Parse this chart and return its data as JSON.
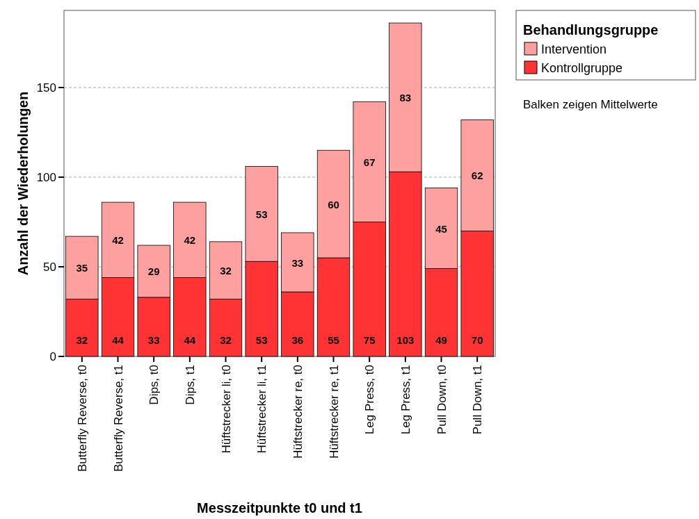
{
  "chart_data": {
    "type": "bar",
    "stacked": true,
    "xlabel": "Messzeitpunkte t0 und t1",
    "ylabel": "Anzahl der Wiederholungen",
    "legend_title": "Behandlungsgruppe",
    "annotations": [
      "Balken zeigen Mittelwerte"
    ],
    "categories": [
      "Butterfly Reverse, t0",
      "Butterfly Reverse, t1",
      "Dips, t0",
      "Dips, t1",
      "Hüftstrecker li, t0",
      "Hüftstrecker li, t1",
      "Hüftstrecker re, t0",
      "Hüftstrecker re, t1",
      "Leg Press, t0",
      "Leg Press, t1",
      "Pull Down, t0",
      "Pull Down, t1"
    ],
    "series": [
      {
        "name": "Kontrollgruppe",
        "color": "#ff3333",
        "values": [
          32,
          44,
          33,
          44,
          32,
          53,
          36,
          55,
          75,
          103,
          49,
          70
        ]
      },
      {
        "name": "Intervention",
        "color": "#ffa0a0",
        "values": [
          35,
          42,
          29,
          42,
          32,
          53,
          33,
          60,
          67,
          83,
          45,
          62
        ]
      }
    ],
    "ylim": [
      0,
      193
    ],
    "yticks": [
      0,
      50,
      100,
      150
    ],
    "grid": "y",
    "legend": "top right",
    "data_labels": true
  }
}
